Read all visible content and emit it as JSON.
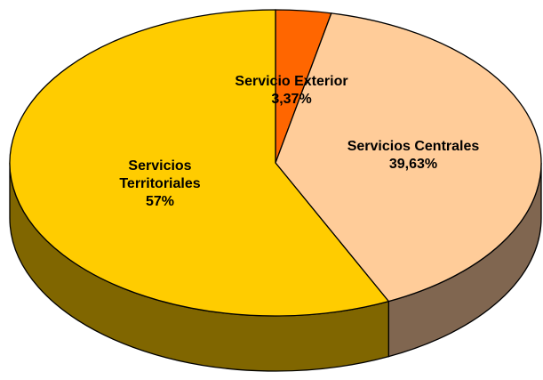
{
  "chart_data": {
    "type": "pie",
    "categories": [
      "Servicio Exterior",
      "Servicios Centrales",
      "Servicios Territoriales"
    ],
    "values": [
      3.37,
      39.63,
      57
    ],
    "value_labels": [
      "3,37%",
      "39,63%",
      "57%"
    ],
    "colors": [
      "#ff6600",
      "#ffcc99",
      "#ffcc00"
    ],
    "side_colors": [
      "#803300",
      "#806650",
      "#806600"
    ],
    "three_d": true
  }
}
